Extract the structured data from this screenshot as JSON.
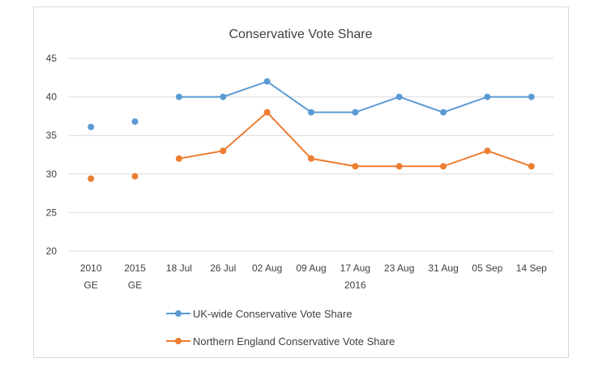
{
  "chart_data": {
    "type": "line",
    "title": "Conservative Vote Share",
    "categories": [
      [
        "2010",
        "GE"
      ],
      [
        "2015",
        "GE"
      ],
      [
        "18 Jul",
        ""
      ],
      [
        "26 Jul",
        ""
      ],
      [
        "02 Aug",
        ""
      ],
      [
        "09 Aug",
        ""
      ],
      [
        "17 Aug",
        "2016"
      ],
      [
        "23 Aug",
        ""
      ],
      [
        "31 Aug",
        ""
      ],
      [
        "05 Sep",
        ""
      ],
      [
        "14 Sep",
        ""
      ]
    ],
    "ylim": [
      20,
      45
    ],
    "yticks": [
      20,
      25,
      30,
      35,
      40,
      45
    ],
    "grid": true,
    "legend_position": "bottom",
    "series": [
      {
        "name": "UK-wide Conservative Vote Share",
        "color": "#5b9bd5",
        "values": [
          36.1,
          36.8,
          40,
          40,
          42,
          38,
          38,
          40,
          38,
          40,
          40
        ],
        "connected_from_index": 2
      },
      {
        "name": "Northern England Conservative Vote Share",
        "color": "#ed7d31",
        "values": [
          29.4,
          29.7,
          32,
          33,
          38,
          32,
          31,
          31,
          31,
          33,
          31
        ],
        "connected_from_index": 2
      }
    ]
  }
}
